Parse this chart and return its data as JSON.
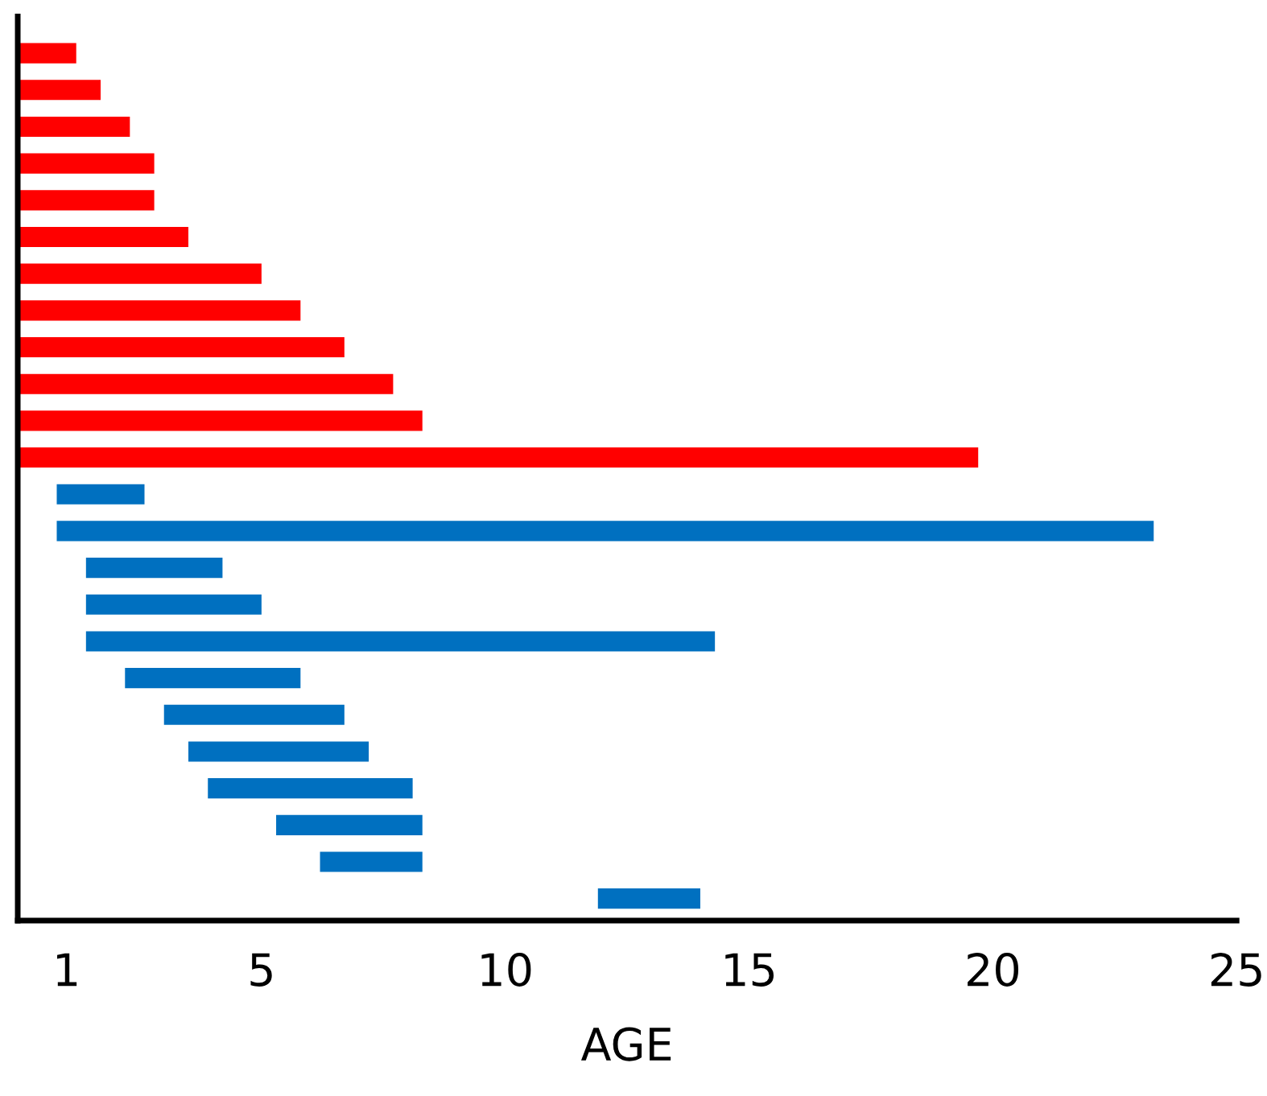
{
  "chart_data": {
    "type": "bar",
    "orientation": "horizontal",
    "xlabel": "AGE",
    "categories": [
      null,
      null,
      null,
      null,
      null,
      null,
      null,
      null,
      null,
      null,
      null,
      null,
      null,
      null,
      null,
      null,
      null,
      null,
      null,
      null,
      null,
      null,
      null,
      null
    ],
    "series": [
      {
        "color": "#ff0000",
        "base": [
          0,
          0,
          0,
          0,
          0,
          0,
          0,
          0,
          0,
          0,
          0,
          0,
          null,
          null,
          null,
          null,
          null,
          null,
          null,
          null,
          null,
          null,
          null,
          null
        ],
        "values": [
          1.2,
          1.7,
          2.3,
          2.8,
          2.8,
          3.5,
          5.0,
          5.8,
          6.7,
          7.7,
          8.3,
          19.7,
          null,
          null,
          null,
          null,
          null,
          null,
          null,
          null,
          null,
          null,
          null,
          null
        ]
      },
      {
        "color": "#0070c0",
        "base": [
          null,
          null,
          null,
          null,
          null,
          null,
          null,
          null,
          null,
          null,
          null,
          null,
          0.8,
          0.8,
          1.4,
          1.4,
          1.4,
          2.2,
          3.0,
          3.5,
          3.9,
          5.3,
          6.2,
          11.9
        ],
        "values": [
          null,
          null,
          null,
          null,
          null,
          null,
          null,
          null,
          null,
          null,
          null,
          null,
          1.8,
          22.5,
          2.8,
          3.6,
          12.9,
          3.6,
          3.7,
          3.7,
          4.2,
          3.0,
          2.1,
          2.1
        ]
      }
    ],
    "xlim": [
      0,
      25
    ],
    "xticks": [
      1,
      5,
      10,
      15,
      20,
      25
    ],
    "tick_labels": "x",
    "grid": false,
    "legend": false
  }
}
